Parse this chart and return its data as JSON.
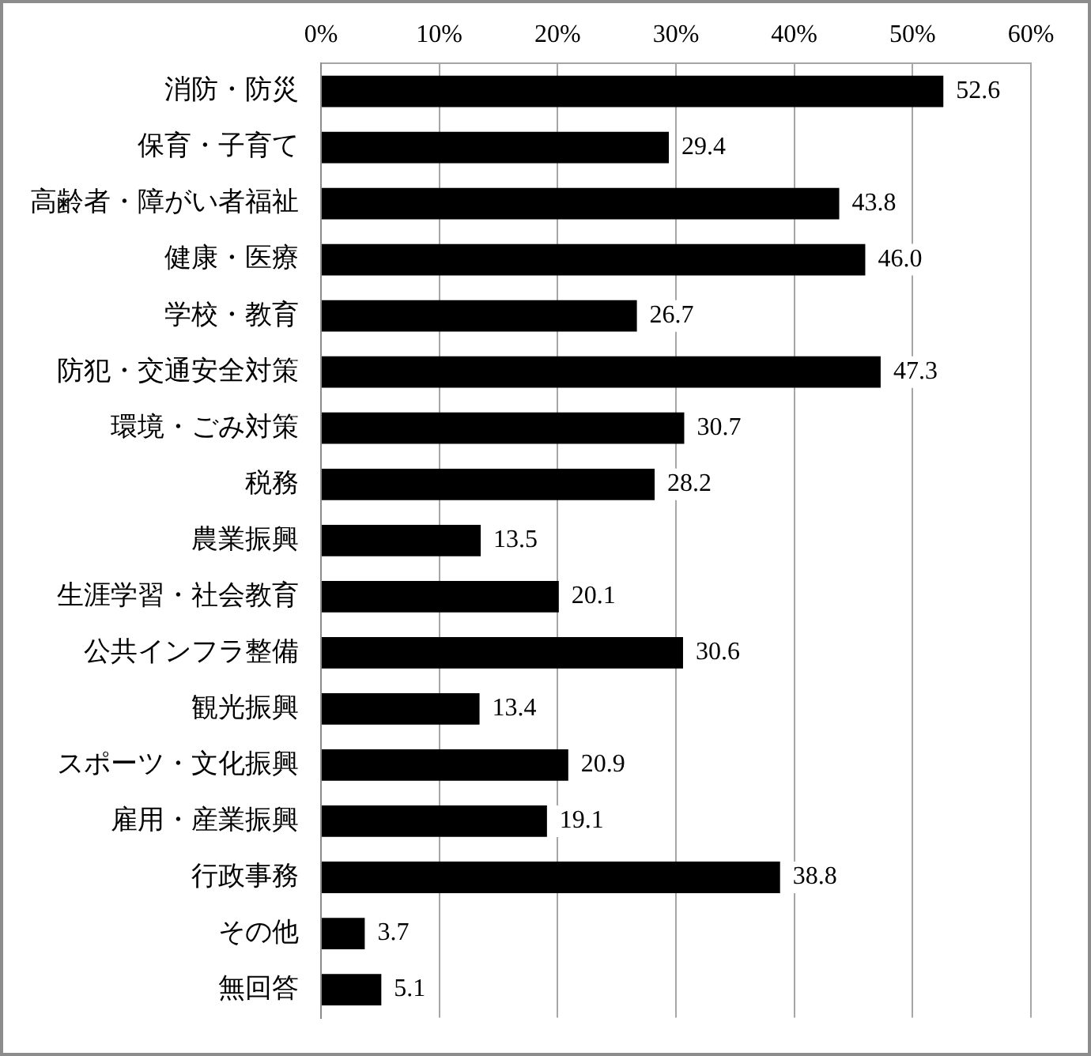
{
  "chart_data": {
    "type": "bar",
    "orientation": "horizontal",
    "categories": [
      "消防・防災",
      "保育・子育て",
      "高齢者・障がい者福祉",
      "健康・医療",
      "学校・教育",
      "防犯・交通安全対策",
      "環境・ごみ対策",
      "税務",
      "農業振興",
      "生涯学習・社会教育",
      "公共インフラ整備",
      "観光振興",
      "スポーツ・文化振興",
      "雇用・産業振興",
      "行政事務",
      "その他",
      "無回答"
    ],
    "values": [
      52.6,
      29.4,
      43.8,
      46.0,
      26.7,
      47.3,
      30.7,
      28.2,
      13.5,
      20.1,
      30.6,
      13.4,
      20.9,
      19.1,
      38.8,
      3.7,
      5.1
    ],
    "value_labels": [
      "52.6",
      "29.4",
      "43.8",
      "46.0",
      "26.7",
      "47.3",
      "30.7",
      "28.2",
      "13.5",
      "20.1",
      "30.6",
      "13.4",
      "20.9",
      "19.1",
      "38.8",
      "3.7",
      "5.1"
    ],
    "color": "#000000",
    "xlim": [
      0,
      60
    ],
    "xticks": [
      {
        "value": 0,
        "label": "0%"
      },
      {
        "value": 10,
        "label": "10%"
      },
      {
        "value": 20,
        "label": "20%"
      },
      {
        "value": 30,
        "label": "30%"
      },
      {
        "value": 40,
        "label": "40%"
      },
      {
        "value": 50,
        "label": "50%"
      },
      {
        "value": 60,
        "label": "60%"
      }
    ],
    "grid": "x"
  }
}
